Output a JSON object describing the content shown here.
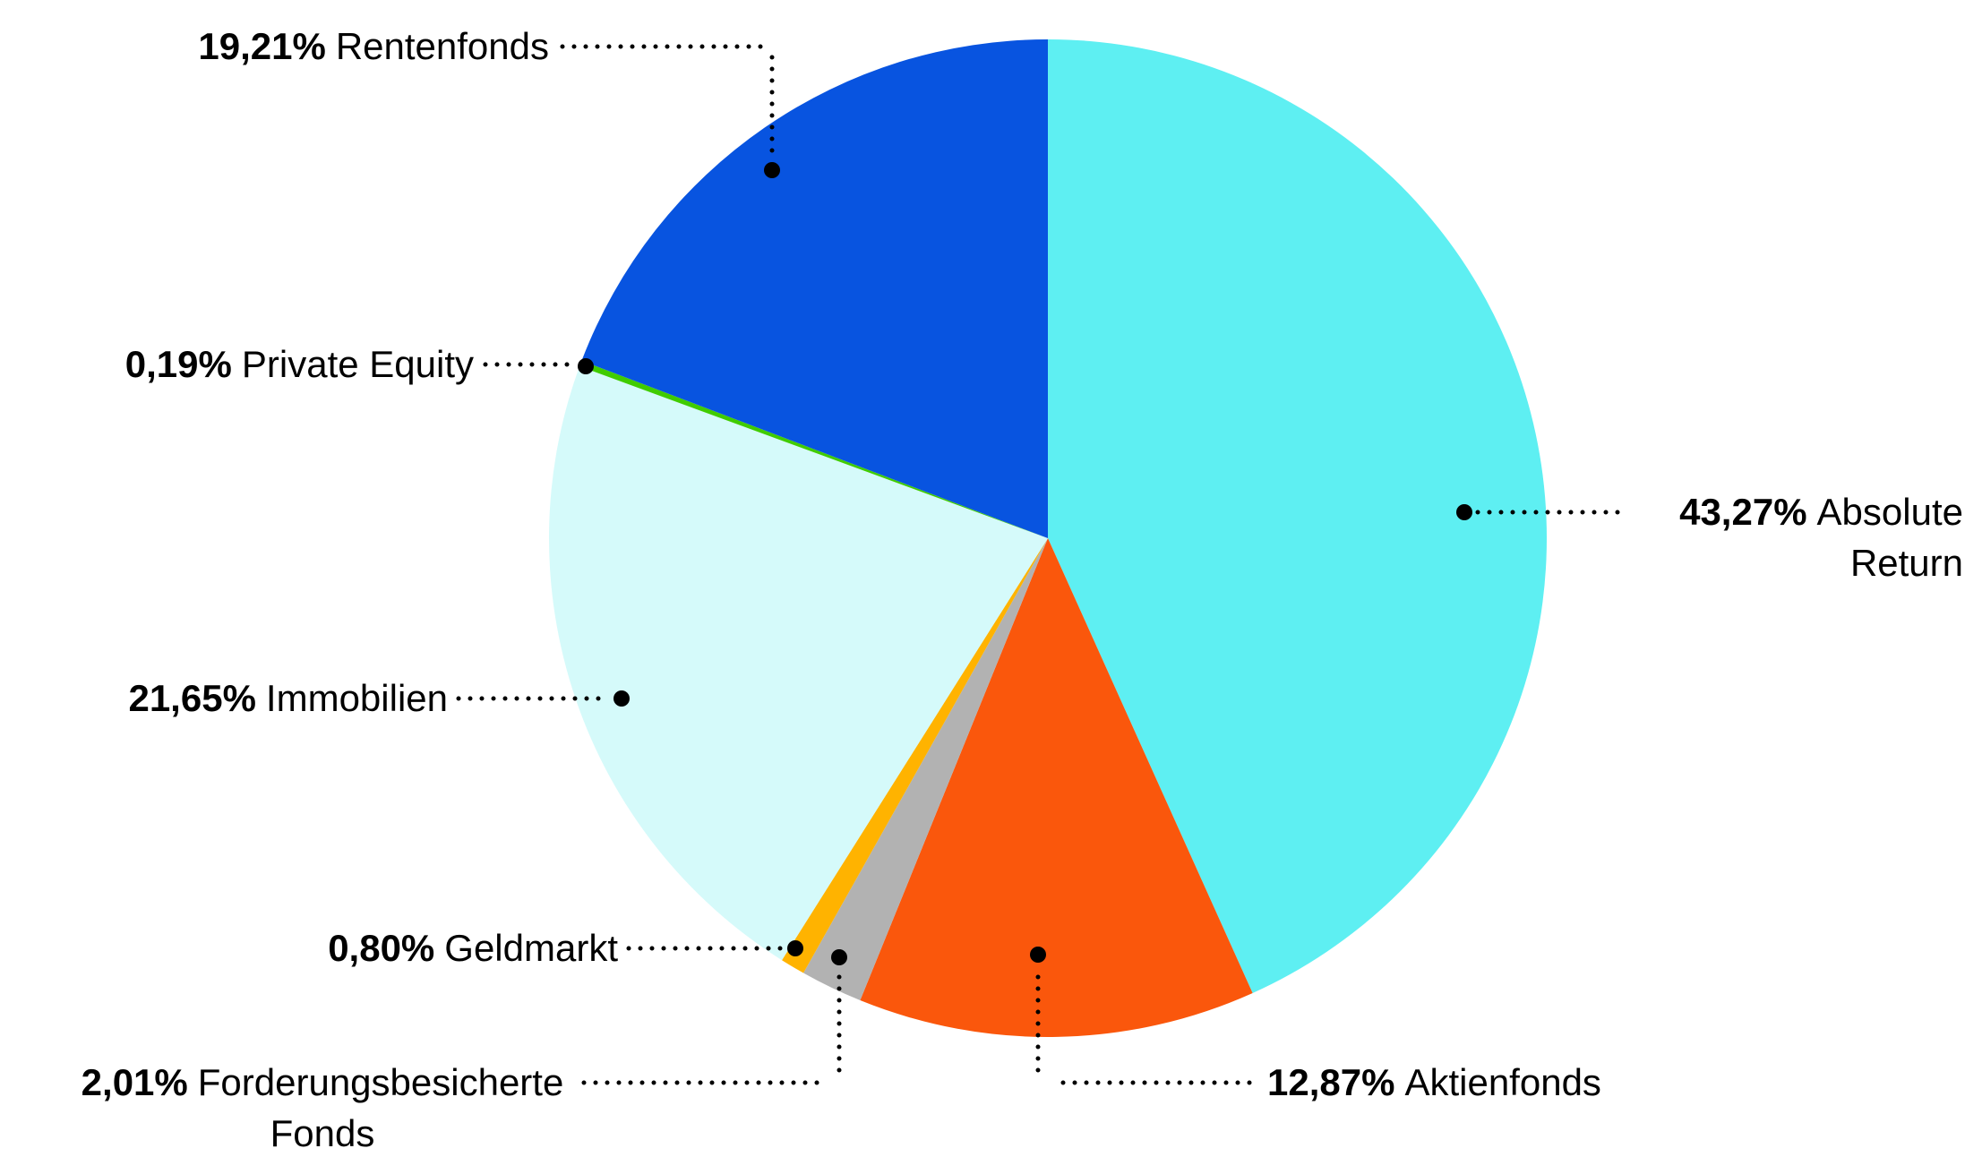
{
  "chart_data": {
    "type": "pie",
    "title": "",
    "unit": "%",
    "decimal_separator": ",",
    "start_angle_deg": 0,
    "direction": "clockwise",
    "legend_position": "none",
    "background_color": "#FFFFFF",
    "label_text_color": "#000000",
    "leader_line_color": "#000000",
    "slices": [
      {
        "label": "Absolute Return",
        "value": 43.27,
        "display": "43,27%",
        "color": "#5EEFF2"
      },
      {
        "label": "Aktienfonds",
        "value": 12.87,
        "display": "12,87%",
        "color": "#FA570C"
      },
      {
        "label": "Forderungsbesicherte Fonds",
        "value": 2.01,
        "display": "2,01%",
        "color": "#B2B2B2"
      },
      {
        "label": "Geldmarkt",
        "value": 0.8,
        "display": "0,80%",
        "color": "#FFB300"
      },
      {
        "label": "Immobilien",
        "value": 21.65,
        "display": "21,65%",
        "color": "#D5FAFA"
      },
      {
        "label": "Private Equity",
        "value": 0.19,
        "display": "0,19%",
        "color": "#40CC00"
      },
      {
        "label": "Rentenfonds",
        "value": 19.21,
        "display": "19,21%",
        "color": "#0854E0"
      }
    ]
  }
}
